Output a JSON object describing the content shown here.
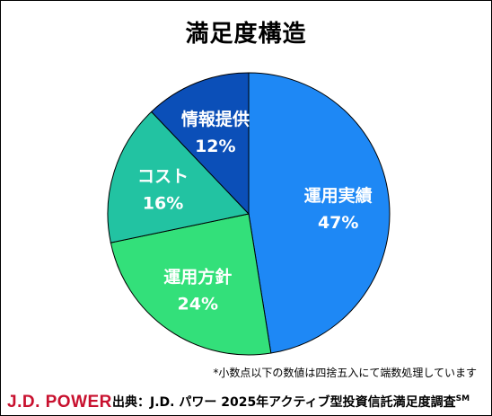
{
  "chart_data": {
    "type": "pie",
    "title": "満足度構造",
    "slices": [
      {
        "label": "運用実績",
        "value": 47,
        "value_label": "47%",
        "color": "#1e88f5"
      },
      {
        "label": "運用方針",
        "value": 24,
        "value_label": "24%",
        "color": "#33e07a"
      },
      {
        "label": "コスト",
        "value": 16,
        "value_label": "16%",
        "color": "#22c3a2"
      },
      {
        "label": "情報提供",
        "value": 12,
        "value_label": "12%",
        "color": "#0b4fb8"
      }
    ],
    "legend": "none"
  },
  "footnote": "*小数点以下の数値は四捨五入にて端数処理しています",
  "brand": {
    "name": "J.D. POWER",
    "color": "#c8102e"
  },
  "source": {
    "text": "出典：J.D. パワー 2025年アクティブ型投資信託満足度調査",
    "mark": "SM"
  }
}
